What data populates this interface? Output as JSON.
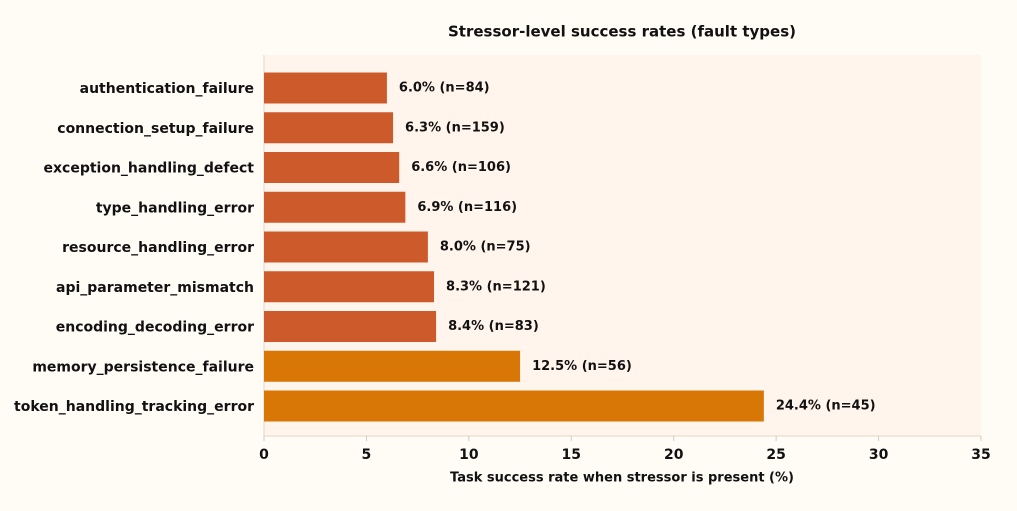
{
  "chart_data": {
    "type": "barh",
    "title": "Stressor-level success rates (fault types)",
    "x_label": "Task success rate when stressor is present (%)",
    "categories": [
      "authentication_failure",
      "connection_setup_failure",
      "exception_handling_defect",
      "type_handling_error",
      "resource_handling_error",
      "api_parameter_mismatch",
      "encoding_decoding_error",
      "memory_persistence_failure",
      "token_handling_tracking_error"
    ],
    "values": [
      6.0,
      6.3,
      6.6,
      6.9,
      8.0,
      8.3,
      8.4,
      12.5,
      24.4
    ],
    "value_labels": [
      "6.0% (n=84)",
      "6.3% (n=159)",
      "6.6% (n=106)",
      "6.9% (n=116)",
      "8.0% (n=75)",
      "8.3% (n=121)",
      "8.4% (n=83)",
      "12.5% (n=56)",
      "24.4% (n=45)"
    ],
    "colors": [
      "#cd5a2b",
      "#cd5a2b",
      "#cd5a2b",
      "#cd5a2b",
      "#cd5a2b",
      "#cd5a2b",
      "#cd5a2b",
      "#d97706",
      "#d97706"
    ],
    "xlim": [
      0,
      35
    ],
    "xticks": [
      0,
      5,
      10,
      15,
      20,
      25,
      30,
      35
    ],
    "grid": false
  }
}
